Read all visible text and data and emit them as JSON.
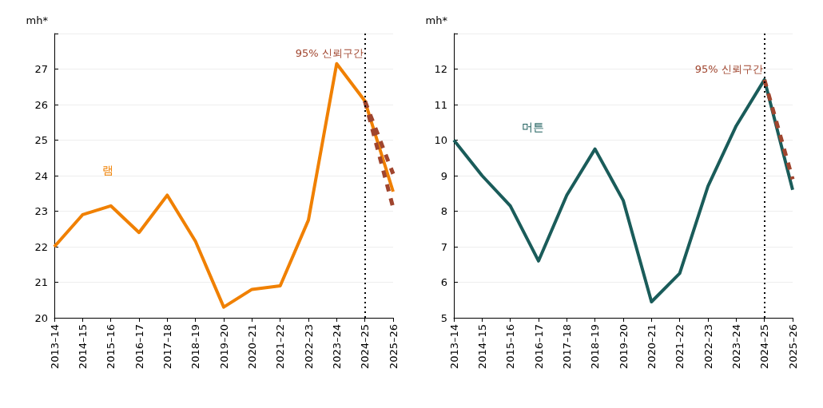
{
  "chart_data": [
    {
      "type": "line",
      "ylabel": "mh*",
      "categories": [
        "2013–14",
        "2014–15",
        "2015–16",
        "2016–17",
        "2017–18",
        "2018–19",
        "2019–20",
        "2020–21",
        "2021–22",
        "2022–23",
        "2023–24",
        "2024–25",
        "2025–26"
      ],
      "series": [
        {
          "name": "램",
          "color": "#f08000",
          "values": [
            22.0,
            22.9,
            23.15,
            22.4,
            23.45,
            22.15,
            20.3,
            20.8,
            20.9,
            22.75,
            27.15,
            26.1,
            23.55
          ]
        },
        {
          "color": "#a0452e",
          "line_style": "dashed",
          "values": [
            null,
            null,
            null,
            null,
            null,
            null,
            null,
            null,
            null,
            null,
            null,
            26.1,
            24.05
          ]
        },
        {
          "color": "#a0452e",
          "line_style": "dashed",
          "values": [
            null,
            null,
            null,
            null,
            null,
            null,
            null,
            null,
            null,
            null,
            null,
            26.1,
            23.1
          ]
        }
      ],
      "ylim": [
        20,
        28
      ],
      "yticks": [
        20,
        21,
        22,
        23,
        24,
        25,
        26,
        27,
        {
          "value": 28,
          "label": null
        }
      ],
      "grid": "y",
      "ref_lines": [
        {
          "axis": "x",
          "value": "2024–25",
          "color": "#000000",
          "line_style": "dotted"
        }
      ],
      "annotations": [
        {
          "text": "95% 신뢰구간",
          "x": "2024–25",
          "y": 27.45
        }
      ]
    },
    {
      "type": "line",
      "ylabel": "mh*",
      "categories": [
        "2013–14",
        "2014–15",
        "2015–16",
        "2016–17",
        "2017–18",
        "2018–19",
        "2019–20",
        "2020–21",
        "2021–22",
        "2022–23",
        "2023–24",
        "2024–25",
        "2025–26"
      ],
      "series": [
        {
          "name": "머튼",
          "color": "#1a5c5a",
          "values": [
            10.0,
            9.0,
            8.15,
            6.6,
            8.45,
            9.75,
            8.3,
            5.45,
            6.25,
            8.7,
            10.4,
            11.7,
            8.6
          ]
        },
        {
          "color": "#a0452e",
          "line_style": "dashed",
          "values": [
            null,
            null,
            null,
            null,
            null,
            null,
            null,
            null,
            null,
            null,
            null,
            11.7,
            8.9
          ]
        }
      ],
      "ylim": [
        5,
        13
      ],
      "yticks": [
        5,
        6,
        7,
        8,
        9,
        10,
        11,
        12,
        {
          "value": 13,
          "label": null
        }
      ],
      "grid": "y",
      "ref_lines": [
        {
          "axis": "x",
          "value": "2024–25",
          "color": "#000000",
          "line_style": "dotted"
        }
      ],
      "annotations": [
        {
          "text": "95% 신뢰구간",
          "x": "2024–25",
          "y": 12.0
        }
      ]
    }
  ]
}
